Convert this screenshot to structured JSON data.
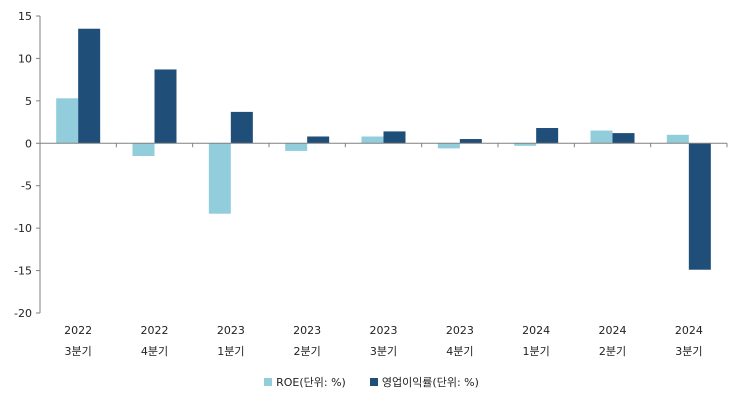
{
  "chart_data": {
    "type": "bar",
    "categories": [
      [
        "2022",
        "3분기"
      ],
      [
        "2022",
        "4분기"
      ],
      [
        "2023",
        "1분기"
      ],
      [
        "2023",
        "2분기"
      ],
      [
        "2023",
        "3분기"
      ],
      [
        "2023",
        "4분기"
      ],
      [
        "2024",
        "1분기"
      ],
      [
        "2024",
        "2분기"
      ],
      [
        "2024",
        "3분기"
      ]
    ],
    "series": [
      {
        "name": "ROE(단위: %)",
        "color": "#92cddc",
        "values": [
          5.3,
          -1.5,
          -8.3,
          -0.9,
          0.8,
          -0.6,
          -0.3,
          1.5,
          1.0
        ]
      },
      {
        "name": "영업이익률(단위: %)",
        "color": "#1f4e79",
        "values": [
          13.5,
          8.7,
          3.7,
          0.8,
          1.4,
          0.5,
          1.8,
          1.2,
          -14.9
        ]
      }
    ],
    "ylim": [
      -20,
      15
    ],
    "yticks": [
      -20,
      -15,
      -10,
      -5,
      0,
      5,
      10,
      15
    ],
    "grid": false,
    "legend_position": "bottom"
  }
}
